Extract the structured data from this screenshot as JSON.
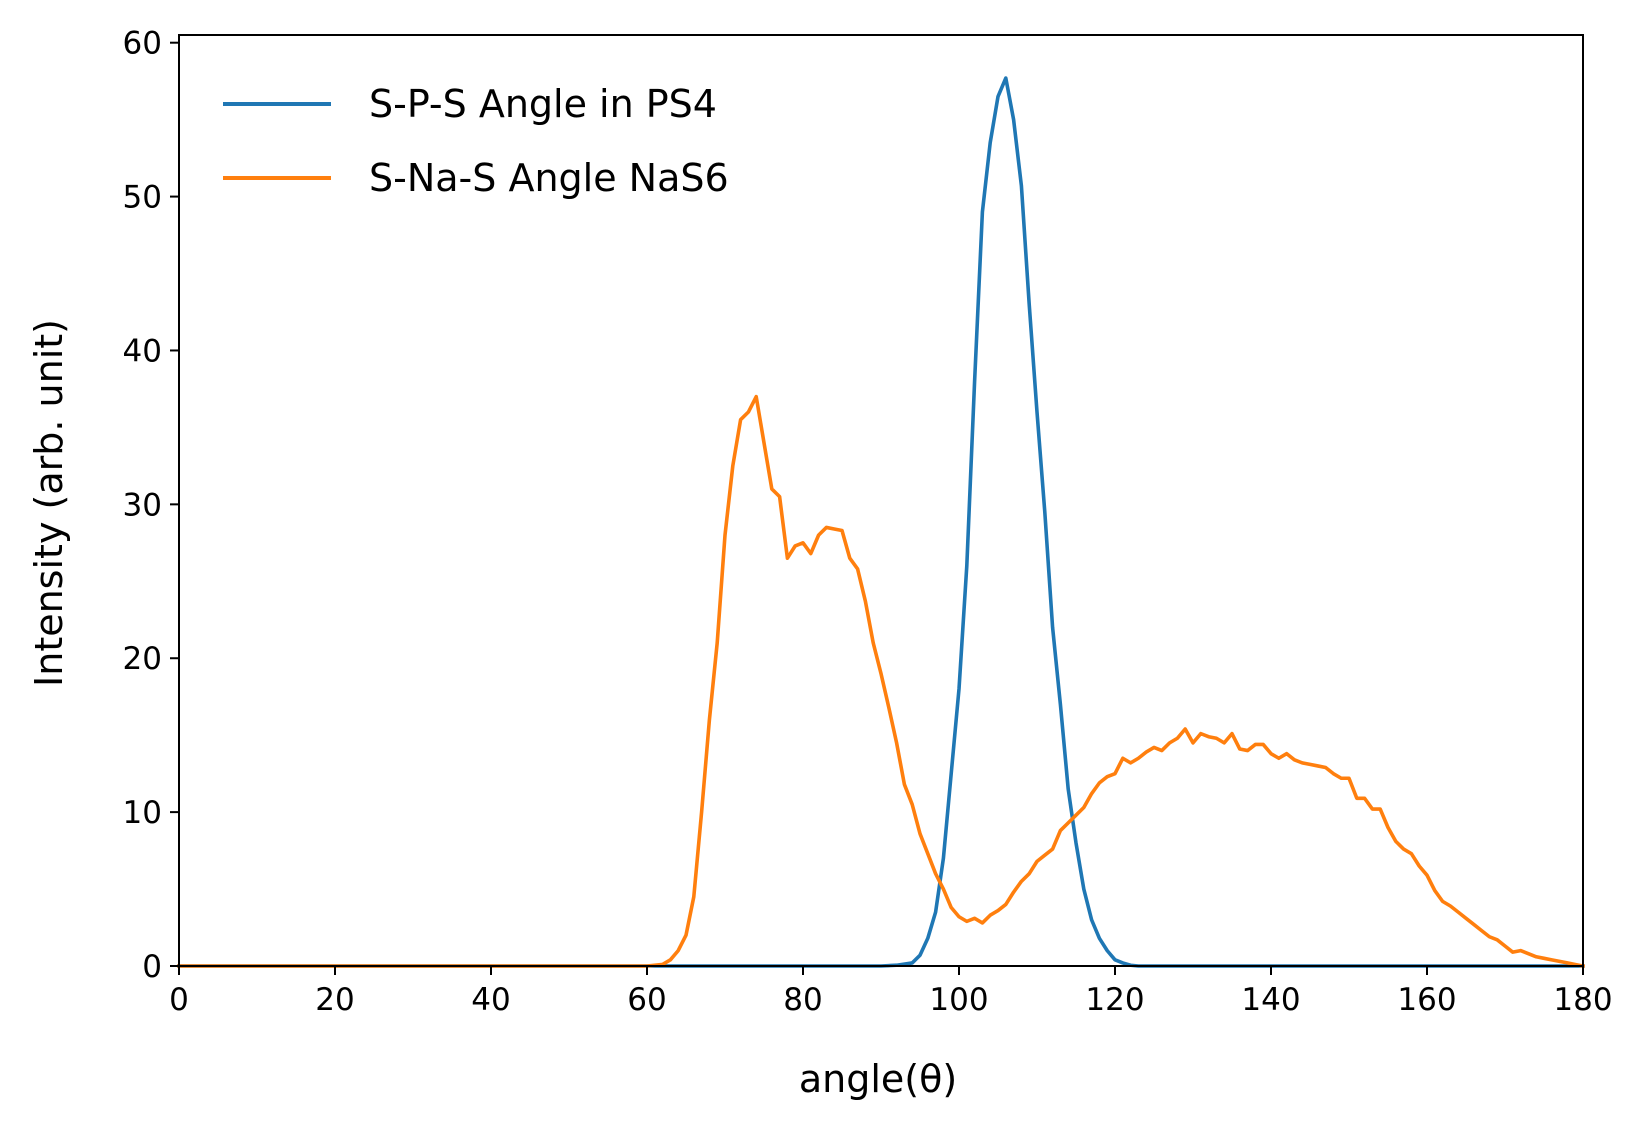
{
  "chart_data": {
    "type": "line",
    "xlabel": "angle(θ)",
    "ylabel": "Intensity (arb. unit)",
    "xlim": [
      0,
      180
    ],
    "ylim": [
      0,
      60.5
    ],
    "xticks": [
      0,
      20,
      40,
      60,
      80,
      100,
      120,
      140,
      160,
      180
    ],
    "yticks": [
      0,
      10,
      20,
      30,
      40,
      50,
      60
    ],
    "grid": false,
    "legend_position": "upper-left",
    "series": [
      {
        "name": "S-P-S Angle in PS4",
        "color": "#1f77b4",
        "x": [
          0,
          90,
          92,
          94,
          95,
          96,
          97,
          98,
          99,
          100,
          101,
          102,
          103,
          104,
          105,
          106,
          107,
          108,
          109,
          110,
          111,
          112,
          113,
          114,
          115,
          116,
          117,
          118,
          119,
          120,
          121,
          122,
          123,
          124,
          125,
          127,
          130,
          180
        ],
        "y": [
          0,
          0,
          0.05,
          0.2,
          0.7,
          1.8,
          3.5,
          7,
          12.5,
          18,
          26,
          38,
          49,
          53.5,
          56.5,
          57.7,
          55,
          50.7,
          43,
          36,
          29.5,
          22,
          17,
          11.5,
          8,
          5,
          3,
          1.8,
          1,
          0.4,
          0.2,
          0.05,
          0,
          0,
          0,
          0,
          0,
          0
        ]
      },
      {
        "name": "S-Na-S Angle NaS6",
        "color": "#ff7f0e",
        "x": [
          0,
          60,
          62,
          63,
          64,
          65,
          66,
          67,
          68,
          69,
          70,
          71,
          72,
          73,
          74,
          75,
          76,
          77,
          78,
          79,
          80,
          81,
          82,
          83,
          84,
          85,
          86,
          87,
          88,
          89,
          90,
          91,
          92,
          93,
          94,
          95,
          96,
          97,
          98,
          99,
          100,
          101,
          102,
          103,
          104,
          105,
          106,
          107,
          108,
          109,
          110,
          111,
          112,
          113,
          114,
          115,
          116,
          117,
          118,
          119,
          120,
          121,
          122,
          123,
          124,
          125,
          126,
          127,
          128,
          129,
          130,
          131,
          132,
          133,
          134,
          135,
          136,
          137,
          138,
          139,
          140,
          141,
          142,
          143,
          144,
          145,
          146,
          147,
          148,
          149,
          150,
          151,
          152,
          153,
          154,
          155,
          156,
          157,
          158,
          159,
          160,
          161,
          162,
          163,
          164,
          165,
          166,
          167,
          168,
          169,
          170,
          171,
          172,
          173,
          174,
          175,
          176,
          177,
          178,
          179,
          180
        ],
        "y": [
          0,
          0,
          0.1,
          0.4,
          1,
          2,
          4.5,
          10,
          16,
          21,
          28,
          32.5,
          35.5,
          36,
          37,
          34,
          31,
          30.5,
          26.5,
          27.3,
          27.5,
          26.8,
          28,
          28.5,
          28.4,
          28.3,
          26.5,
          25.8,
          23.7,
          21,
          19,
          16.8,
          14.5,
          11.8,
          10.5,
          8.6,
          7.3,
          6,
          5,
          3.8,
          3.2,
          2.9,
          3.1,
          2.8,
          3.3,
          3.6,
          4,
          4.8,
          5.5,
          6,
          6.8,
          7.2,
          7.6,
          8.8,
          9.3,
          9.8,
          10.3,
          11.2,
          11.9,
          12.3,
          12.5,
          13.5,
          13.2,
          13.5,
          13.9,
          14.2,
          14,
          14.5,
          14.8,
          15.4,
          14.5,
          15.1,
          14.9,
          14.8,
          14.5,
          15.1,
          14.1,
          14,
          14.4,
          14.4,
          13.8,
          13.5,
          13.8,
          13.4,
          13.2,
          13.1,
          13,
          12.9,
          12.5,
          12.2,
          12.2,
          10.9,
          10.9,
          10.2,
          10.2,
          9,
          8.1,
          7.6,
          7.3,
          6.5,
          5.9,
          4.9,
          4.2,
          3.9,
          3.5,
          3.1,
          2.7,
          2.3,
          1.9,
          1.7,
          1.3,
          0.9,
          1,
          0.8,
          0.6,
          0.5,
          0.4,
          0.3,
          0.2,
          0.1,
          0
        ]
      }
    ]
  }
}
